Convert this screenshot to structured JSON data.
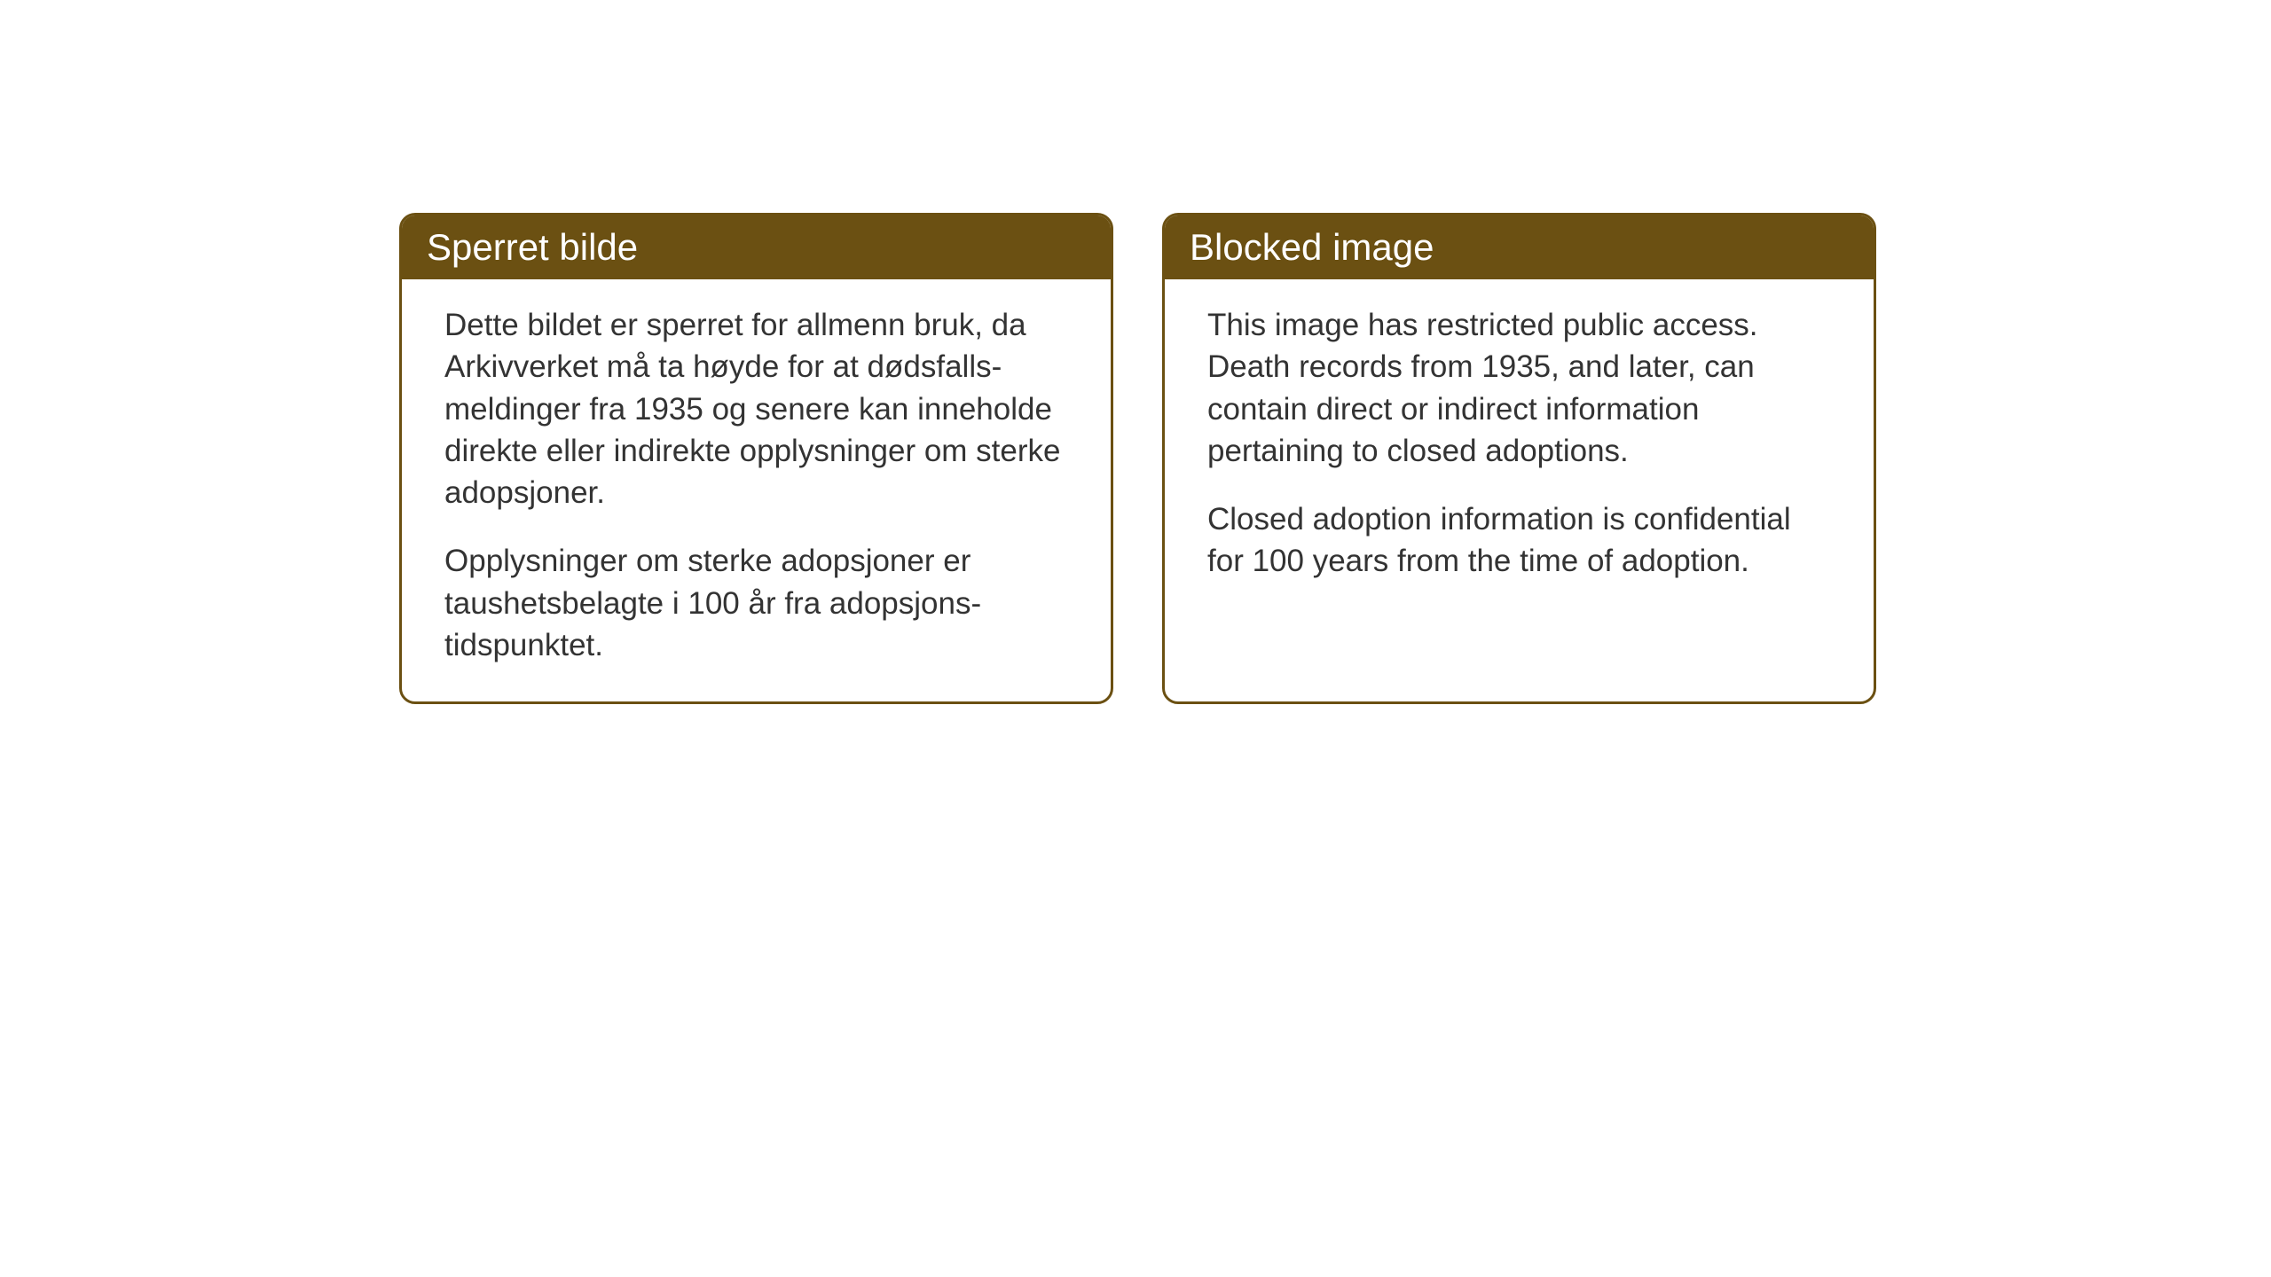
{
  "layout": {
    "background_color": "#ffffff",
    "card_border_color": "#6b5012",
    "card_border_width": 3,
    "card_border_radius": 18,
    "header_bg_color": "#6b5012",
    "header_text_color": "#ffffff",
    "body_text_color": "#333333",
    "header_font_size": 42,
    "body_font_size": 35
  },
  "cards": {
    "norwegian": {
      "title": "Sperret bilde",
      "paragraph1": "Dette bildet er sperret for allmenn bruk, da Arkivverket må ta høyde for at dødsfalls-meldinger fra 1935 og senere kan inneholde direkte eller indirekte opplysninger om sterke adopsjoner.",
      "paragraph2": "Opplysninger om sterke adopsjoner er taushetsbelagte i 100 år fra adopsjons-tidspunktet."
    },
    "english": {
      "title": "Blocked image",
      "paragraph1": "This image has restricted public access. Death records from 1935, and later, can contain direct or indirect information pertaining to closed adoptions.",
      "paragraph2": "Closed adoption information is confidential for 100 years from the time of adoption."
    }
  }
}
